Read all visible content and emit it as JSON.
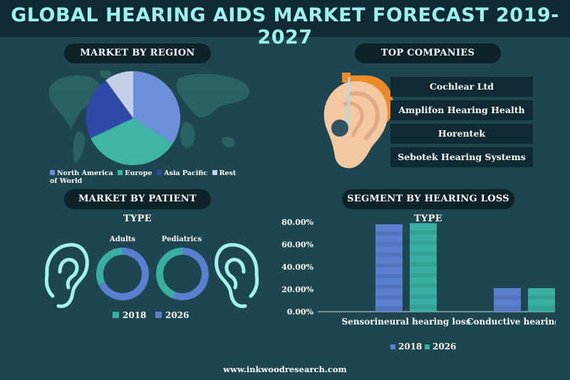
{
  "title": "GLOBAL HEARING AIDS MARKET FORECAST 2019-2027",
  "sections": {
    "region": "MARKET BY REGION",
    "companies": "TOP COMPANIES",
    "patient": "MARKET BY PATIENT TYPE",
    "segment": "SEGMENT BY HEARING LOSS TYPE"
  },
  "companies": [
    "Cochlear Ltd",
    "Amplifon Hearing Health Care",
    "Horentek",
    "Sebotek Hearing Systems"
  ],
  "patient_labels": {
    "adults": "Adults",
    "pediatrics": "Pediatrics"
  },
  "legend_years": [
    "2018",
    "2026"
  ],
  "colors": {
    "north_america": "#6b8fd9",
    "europe": "#3fb5a6",
    "asia_pacific": "#2e4aa6",
    "rest_of_world": "#c4cfea",
    "y2018": "#5b7fcf",
    "y2026": "#3aaea3",
    "ear_outline": "#a5f1ef"
  },
  "footer": "www.inkwoodresearch.com",
  "chart_data": [
    {
      "type": "pie",
      "title": "MARKET BY REGION",
      "categories": [
        "North America",
        "Europe",
        "Asia Pacific",
        "Rest of World"
      ],
      "values": [
        34,
        34,
        22,
        10
      ]
    },
    {
      "type": "pie",
      "title": "MARKET BY PATIENT TYPE",
      "categories": [
        "Adults",
        "Pediatrics"
      ],
      "series": [
        {
          "name": "2018",
          "values": [
            68,
            56
          ]
        },
        {
          "name": "2026",
          "values": [
            32,
            44
          ]
        }
      ]
    },
    {
      "type": "bar",
      "title": "SEGMENT BY HEARING LOSS TYPE",
      "categories": [
        "Sensorineural hearing loss",
        "Conductive hearing loss"
      ],
      "series": [
        {
          "name": "2018",
          "values": [
            78,
            21
          ]
        },
        {
          "name": "2026",
          "values": [
            79,
            21
          ]
        }
      ],
      "ylim": [
        0,
        80
      ],
      "yticks": [
        "0.00%",
        "20.00%",
        "40.00%",
        "60.00%",
        "80.00%"
      ]
    }
  ]
}
